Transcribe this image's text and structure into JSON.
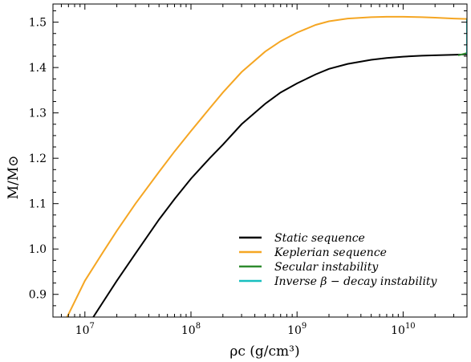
{
  "chart_data": {
    "type": "line",
    "title": "",
    "xlabel": "ρc (g/cm³)",
    "ylabel": "M/M⊙",
    "x_scale": "log",
    "xlim": [
      5000000,
      40000000000
    ],
    "ylim": [
      0.85,
      1.54
    ],
    "x_ticks": [
      {
        "value": 10000000,
        "base": "10",
        "exp": "7"
      },
      {
        "value": 100000000,
        "base": "10",
        "exp": "8"
      },
      {
        "value": 1000000000,
        "base": "10",
        "exp": "9"
      },
      {
        "value": 10000000000,
        "base": "10",
        "exp": "10"
      }
    ],
    "y_ticks": [
      {
        "value": 0.9,
        "label": "0.9"
      },
      {
        "value": 1.0,
        "label": "1.0"
      },
      {
        "value": 1.1,
        "label": "1.1"
      },
      {
        "value": 1.2,
        "label": "1.2"
      },
      {
        "value": 1.3,
        "label": "1.3"
      },
      {
        "value": 1.4,
        "label": "1.4"
      },
      {
        "value": 1.5,
        "label": "1.5"
      }
    ],
    "grid": false,
    "legend_position": "lower-right",
    "series": [
      {
        "name": "Static sequence",
        "color": "#000000",
        "x": [
          12000000,
          20000000,
          30000000,
          50000000,
          70000000,
          100000000,
          150000000,
          200000000,
          300000000,
          500000000,
          700000000,
          1000000000,
          1500000000,
          2000000000,
          3000000000,
          5000000000,
          7000000000,
          10000000000,
          15000000000,
          20000000000,
          30000000000,
          40000000000
        ],
        "y": [
          0.85,
          0.93,
          0.99,
          1.065,
          1.11,
          1.155,
          1.2,
          1.23,
          1.275,
          1.32,
          1.345,
          1.365,
          1.385,
          1.397,
          1.408,
          1.417,
          1.421,
          1.424,
          1.426,
          1.427,
          1.428,
          1.429
        ]
      },
      {
        "name": "Keplerian sequence",
        "color": "#f5a623",
        "x": [
          6800000,
          10000000,
          15000000,
          20000000,
          30000000,
          50000000,
          70000000,
          100000000,
          150000000,
          200000000,
          300000000,
          500000000,
          700000000,
          1000000000,
          1500000000,
          2000000000,
          3000000000,
          5000000000,
          7000000000,
          10000000000,
          15000000000,
          20000000000,
          30000000000,
          40000000000
        ],
        "y": [
          0.85,
          0.93,
          0.995,
          1.04,
          1.1,
          1.17,
          1.215,
          1.26,
          1.31,
          1.345,
          1.39,
          1.435,
          1.458,
          1.477,
          1.494,
          1.502,
          1.508,
          1.511,
          1.512,
          1.512,
          1.511,
          1.51,
          1.508,
          1.507
        ]
      },
      {
        "name": "Secular instability",
        "color": "#2e8b2e",
        "x": [
          33000000000,
          36000000000,
          40000000000
        ],
        "y": [
          1.427,
          1.429,
          1.432
        ]
      },
      {
        "name": "Inverse β − decay instability",
        "color": "#17bfbf",
        "x": [
          40000000000,
          40000000000
        ],
        "y": [
          1.429,
          1.507
        ]
      }
    ]
  }
}
